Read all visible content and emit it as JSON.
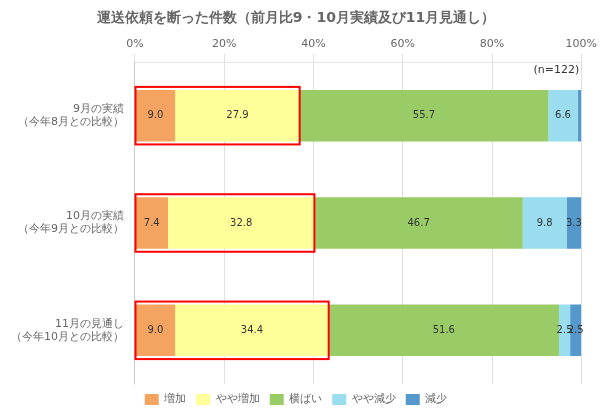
{
  "chart_data": {
    "type": "bar",
    "orientation": "horizontal",
    "stacked": true,
    "title": "運送依頼を断った件数（前月比9・10月実績及び11月見通し）",
    "annotation": "(n=122)",
    "categories": [
      "9月の実績\n（今年8月との比較）",
      "10月の実績\n（今年9月との比較）",
      "11月の見通し\n（今年10月との比較）"
    ],
    "series": [
      {
        "name": "増加",
        "color": "#F4A460",
        "values": [
          9.0,
          7.4,
          9.0
        ],
        "value_labels": [
          "9.0",
          "7.4",
          "9.0"
        ]
      },
      {
        "name": "やや増加",
        "color": "#FFFF99",
        "values": [
          27.9,
          32.8,
          34.4
        ],
        "value_labels": [
          "27.9",
          "32.8",
          "34.4"
        ]
      },
      {
        "name": "横ばい",
        "color": "#99CC66",
        "values": [
          55.7,
          46.7,
          51.6
        ],
        "value_labels": [
          "55.7",
          "46.7",
          "51.6"
        ]
      },
      {
        "name": "やや減少",
        "color": "#99DDEE",
        "values": [
          6.6,
          9.8,
          2.5
        ],
        "value_labels": [
          "6.6",
          "9.8",
          "2.5"
        ]
      },
      {
        "name": "減少",
        "color": "#5599CC",
        "values": [
          0.8,
          3.3,
          2.5
        ],
        "value_labels": [
          null,
          "3.3",
          "2.5"
        ]
      }
    ],
    "xlim": [
      0,
      100
    ],
    "xticks": [
      {
        "value": 0,
        "label": "0%"
      },
      {
        "value": 20,
        "label": "20%"
      },
      {
        "value": 40,
        "label": "40%"
      },
      {
        "value": 60,
        "label": "60%"
      },
      {
        "value": 80,
        "label": "80%"
      },
      {
        "value": 100,
        "label": "100%"
      }
    ],
    "grid": true,
    "legend": "bottom",
    "data_labels": true
  }
}
